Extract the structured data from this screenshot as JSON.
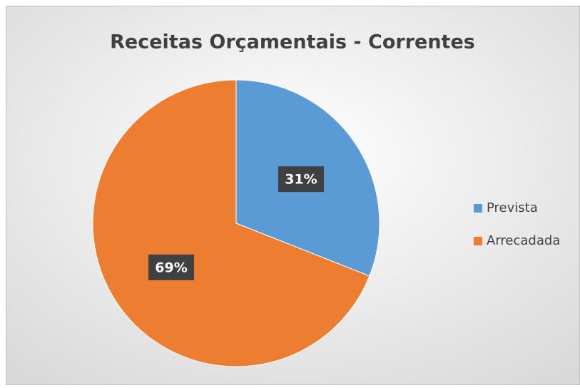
{
  "chart_data": {
    "type": "pie",
    "title": "Receitas Orçamentais - Correntes",
    "categories": [
      "Prevista",
      "Arrecadada"
    ],
    "values": [
      31,
      69
    ],
    "value_labels": [
      "31%",
      "69%"
    ],
    "colors": [
      "#5b9bd5",
      "#ed7d31"
    ],
    "legend": "right"
  }
}
